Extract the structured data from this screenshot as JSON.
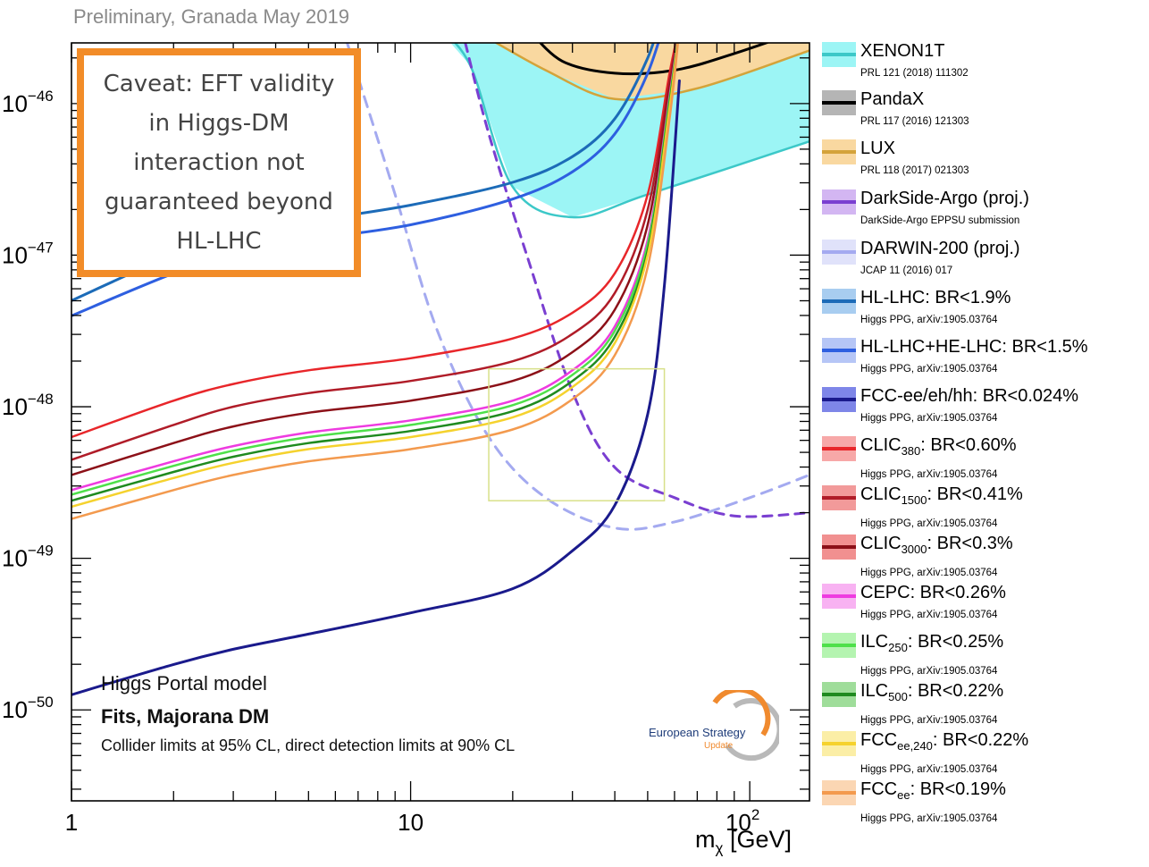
{
  "header": {
    "preliminary": "Preliminary, Granada May 2019"
  },
  "caveat": {
    "lines": [
      "Caveat: EFT validity",
      "in Higgs-DM",
      "interaction not",
      "guaranteed beyond",
      "HL-LHC"
    ]
  },
  "info": {
    "model": "Higgs Portal model",
    "fits": "Fits, Majorana DM",
    "cl_note": "Collider limits at 95% CL, direct detection limits at 90% CL"
  },
  "logo": {
    "line1": "European Strategy",
    "line2": "Update"
  },
  "chart_data": {
    "type": "line",
    "xscale": "log",
    "yscale": "log",
    "xlim": [
      1,
      150
    ],
    "ylim_log10": [
      -50.6,
      -45.6
    ],
    "xlabel_main": "m",
    "xlabel_sub": "χ",
    "xlabel_unit": " [GeV]",
    "x_ticks": [
      {
        "value": 1,
        "base": "1",
        "sup": ""
      },
      {
        "value": 10,
        "base": "10",
        "sup": ""
      },
      {
        "value": 100,
        "base": "10",
        "sup": "2"
      }
    ],
    "y_ticks": [
      {
        "value": -46,
        "base": "10",
        "sup": "−46"
      },
      {
        "value": -47,
        "base": "10",
        "sup": "−47"
      },
      {
        "value": -48,
        "base": "10",
        "sup": "−48"
      },
      {
        "value": -49,
        "base": "10",
        "sup": "−49"
      },
      {
        "value": -50,
        "base": "10",
        "sup": "−50"
      }
    ],
    "bands": [
      {
        "name": "xenon-band",
        "fill": "#9cf5f5",
        "stroke": "#3cc8c8",
        "upper": [
          [
            12,
            -45.5
          ],
          [
            150,
            -45.5
          ]
        ],
        "lower": [
          [
            12,
            -45.5
          ],
          [
            15,
            -45.75
          ],
          [
            20,
            -46.55
          ],
          [
            30,
            -46.75
          ],
          [
            50,
            -46.6
          ],
          [
            150,
            -46.25
          ]
        ]
      },
      {
        "name": "lux-band",
        "fill": "#f9d8a0",
        "stroke": "#d4a33a",
        "upper": [
          [
            15,
            -45.5
          ],
          [
            150,
            -45.5
          ]
        ],
        "lower": [
          [
            15,
            -45.5
          ],
          [
            25,
            -45.78
          ],
          [
            40,
            -45.97
          ],
          [
            70,
            -45.9
          ],
          [
            150,
            -45.65
          ]
        ]
      }
    ],
    "series": [
      {
        "name": "XENON1T",
        "color": "#3cc8c8",
        "width": 2.5,
        "dash": "",
        "points": [
          [
            12,
            -45.5
          ],
          [
            15,
            -45.75
          ],
          [
            20,
            -46.55
          ],
          [
            30,
            -46.75
          ],
          [
            50,
            -46.6
          ],
          [
            150,
            -46.25
          ]
        ]
      },
      {
        "name": "PandaX",
        "color": "#000000",
        "width": 3,
        "dash": "",
        "points": [
          [
            22,
            -45.5
          ],
          [
            28,
            -45.72
          ],
          [
            40,
            -45.8
          ],
          [
            60,
            -45.78
          ],
          [
            90,
            -45.67
          ],
          [
            150,
            -45.5
          ]
        ]
      },
      {
        "name": "LUX",
        "color": "#d4a33a",
        "width": 2.5,
        "dash": "",
        "points": [
          [
            15,
            -45.5
          ],
          [
            25,
            -45.78
          ],
          [
            40,
            -45.97
          ],
          [
            70,
            -45.9
          ],
          [
            150,
            -45.65
          ]
        ]
      },
      {
        "name": "DarkSide-Argo",
        "color": "#7a3fd1",
        "width": 3,
        "dash": "10,8",
        "points": [
          [
            14.5,
            -45.6
          ],
          [
            17,
            -46.2
          ],
          [
            22,
            -47.0
          ],
          [
            30,
            -47.9
          ],
          [
            40,
            -48.4
          ],
          [
            60,
            -48.6
          ],
          [
            90,
            -48.72
          ],
          [
            150,
            -48.7
          ]
        ]
      },
      {
        "name": "DARWIN-200",
        "color": "#a4aaf0",
        "width": 3,
        "dash": "12,9",
        "points": [
          [
            6.5,
            -45.6
          ],
          [
            9,
            -46.6
          ],
          [
            12,
            -47.5
          ],
          [
            17,
            -48.2
          ],
          [
            25,
            -48.6
          ],
          [
            40,
            -48.8
          ],
          [
            60,
            -48.76
          ],
          [
            100,
            -48.6
          ],
          [
            150,
            -48.45
          ]
        ]
      },
      {
        "name": "HL-LHC",
        "color": "#1c6bb8",
        "width": 3,
        "dash": "",
        "points": [
          [
            1,
            -47.3
          ],
          [
            2,
            -47.0
          ],
          [
            3,
            -46.89
          ],
          [
            5,
            -46.78
          ],
          [
            10,
            -46.67
          ],
          [
            20,
            -46.52
          ],
          [
            30,
            -46.35
          ],
          [
            40,
            -46.1
          ],
          [
            50,
            -45.7
          ],
          [
            56,
            -45.35
          ]
        ]
      },
      {
        "name": "HL-LHC+HE-LHC",
        "color": "#2e5fe0",
        "width": 3,
        "dash": "",
        "points": [
          [
            1,
            -47.4
          ],
          [
            2,
            -47.12
          ],
          [
            3,
            -47.0
          ],
          [
            5,
            -46.9
          ],
          [
            10,
            -46.8
          ],
          [
            20,
            -46.63
          ],
          [
            30,
            -46.45
          ],
          [
            40,
            -46.2
          ],
          [
            50,
            -45.8
          ],
          [
            58,
            -45.35
          ]
        ]
      },
      {
        "name": "FCC-ee/eh/hh",
        "color": "#1a1a8c",
        "width": 3,
        "dash": "",
        "points": [
          [
            1,
            -49.9
          ],
          [
            2,
            -49.7
          ],
          [
            3,
            -49.6
          ],
          [
            5,
            -49.5
          ],
          [
            10,
            -49.36
          ],
          [
            20,
            -49.2
          ],
          [
            30,
            -48.95
          ],
          [
            40,
            -48.65
          ],
          [
            50,
            -48.05
          ],
          [
            56,
            -47.2
          ],
          [
            62,
            -45.85
          ]
        ]
      },
      {
        "name": "CLIC380",
        "color": "#e8262a",
        "width": 2.5,
        "dash": "",
        "points": [
          [
            1,
            -48.2
          ],
          [
            2,
            -47.96
          ],
          [
            3,
            -47.85
          ],
          [
            5,
            -47.76
          ],
          [
            10,
            -47.68
          ],
          [
            20,
            -47.55
          ],
          [
            30,
            -47.38
          ],
          [
            40,
            -47.12
          ],
          [
            50,
            -46.6
          ],
          [
            58,
            -45.8
          ],
          [
            62,
            -45.5
          ]
        ]
      },
      {
        "name": "CLIC1500",
        "color": "#b01c28",
        "width": 2.5,
        "dash": "",
        "points": [
          [
            1,
            -48.35
          ],
          [
            2,
            -48.12
          ],
          [
            3,
            -48.0
          ],
          [
            5,
            -47.91
          ],
          [
            10,
            -47.83
          ],
          [
            20,
            -47.7
          ],
          [
            30,
            -47.52
          ],
          [
            40,
            -47.25
          ],
          [
            50,
            -46.7
          ],
          [
            58,
            -45.85
          ],
          [
            62,
            -45.5
          ]
        ]
      },
      {
        "name": "CLIC3000",
        "color": "#8c1018",
        "width": 2.5,
        "dash": "",
        "points": [
          [
            1,
            -48.45
          ],
          [
            2,
            -48.24
          ],
          [
            3,
            -48.13
          ],
          [
            5,
            -48.04
          ],
          [
            10,
            -47.96
          ],
          [
            20,
            -47.83
          ],
          [
            30,
            -47.64
          ],
          [
            40,
            -47.36
          ],
          [
            50,
            -46.8
          ],
          [
            58,
            -45.9
          ],
          [
            62,
            -45.5
          ]
        ]
      },
      {
        "name": "CEPC",
        "color": "#ee3be0",
        "width": 2.5,
        "dash": "",
        "points": [
          [
            1,
            -48.55
          ],
          [
            2,
            -48.36
          ],
          [
            3,
            -48.26
          ],
          [
            5,
            -48.17
          ],
          [
            10,
            -48.09
          ],
          [
            20,
            -47.96
          ],
          [
            30,
            -47.76
          ],
          [
            40,
            -47.47
          ],
          [
            50,
            -46.9
          ],
          [
            58,
            -45.95
          ],
          [
            62,
            -45.5
          ]
        ]
      },
      {
        "name": "ILC250",
        "color": "#4ee04a",
        "width": 2.5,
        "dash": "",
        "points": [
          [
            1,
            -48.58
          ],
          [
            2,
            -48.39
          ],
          [
            3,
            -48.29
          ],
          [
            5,
            -48.2
          ],
          [
            10,
            -48.12
          ],
          [
            20,
            -47.99
          ],
          [
            30,
            -47.79
          ],
          [
            40,
            -47.5
          ],
          [
            50,
            -46.93
          ],
          [
            58,
            -45.97
          ],
          [
            62,
            -45.5
          ]
        ]
      },
      {
        "name": "ILC500",
        "color": "#1f8a1f",
        "width": 2.5,
        "dash": "",
        "points": [
          [
            1,
            -48.62
          ],
          [
            2,
            -48.43
          ],
          [
            3,
            -48.33
          ],
          [
            5,
            -48.24
          ],
          [
            10,
            -48.16
          ],
          [
            20,
            -48.03
          ],
          [
            30,
            -47.83
          ],
          [
            40,
            -47.54
          ],
          [
            50,
            -46.97
          ],
          [
            58,
            -46.0
          ],
          [
            62,
            -45.5
          ]
        ]
      },
      {
        "name": "FCCee240",
        "color": "#f5d22e",
        "width": 2.5,
        "dash": "",
        "points": [
          [
            1,
            -48.66
          ],
          [
            2,
            -48.47
          ],
          [
            3,
            -48.37
          ],
          [
            5,
            -48.28
          ],
          [
            10,
            -48.2
          ],
          [
            20,
            -48.07
          ],
          [
            30,
            -47.87
          ],
          [
            40,
            -47.58
          ],
          [
            50,
            -47.0
          ],
          [
            58,
            -46.03
          ],
          [
            62,
            -45.5
          ]
        ]
      },
      {
        "name": "FCCee",
        "color": "#f39a4e",
        "width": 2.5,
        "dash": "",
        "points": [
          [
            1,
            -48.74
          ],
          [
            2,
            -48.55
          ],
          [
            3,
            -48.45
          ],
          [
            5,
            -48.36
          ],
          [
            10,
            -48.28
          ],
          [
            20,
            -48.15
          ],
          [
            30,
            -47.95
          ],
          [
            40,
            -47.66
          ],
          [
            50,
            -47.08
          ],
          [
            58,
            -46.1
          ],
          [
            62,
            -45.5
          ]
        ]
      }
    ],
    "zoom_box": {
      "x": [
        17,
        56
      ],
      "y_log10": [
        -48.62,
        -47.75
      ],
      "color": "#d8e08a"
    }
  },
  "legend": [
    {
      "label": "XENON1T",
      "sub": "",
      "rest": "",
      "ref": "PRL 121 (2018) 111302",
      "line": "#3cc8c8",
      "fill": "#9cf5f5"
    },
    {
      "label": "PandaX",
      "sub": "",
      "rest": "",
      "ref": "PRL 117 (2016) 121303",
      "line": "#000000",
      "fill": "#b5b5b5"
    },
    {
      "label": "LUX",
      "sub": "",
      "rest": "",
      "ref": "PRL 118 (2017) 021303",
      "line": "#d4a33a",
      "fill": "#f9d8a0"
    },
    {
      "label": "DarkSide-Argo (proj.)",
      "sub": "",
      "rest": "",
      "ref": "DarkSide-Argo EPPSU submission",
      "line": "#7a3fd1",
      "fill": "#d3b6f2"
    },
    {
      "label": "DARWIN-200 (proj.)",
      "sub": "",
      "rest": "",
      "ref": "JCAP 11 (2016) 017",
      "line": "#a4aaf0",
      "fill": "#e0e2fa"
    },
    {
      "label": "HL-LHC: BR<1.9%",
      "sub": "",
      "rest": "",
      "ref": "Higgs PPG, arXiv:1905.03764",
      "line": "#1c6bb8",
      "fill": "#a8cdf0"
    },
    {
      "label": "HL-LHC+HE-LHC: BR<1.5%",
      "sub": "",
      "rest": "",
      "ref": "Higgs PPG, arXiv:1905.03764",
      "line": "#2e5fe0",
      "fill": "#b6c6f6"
    },
    {
      "label": "FCC-ee/eh/hh: BR<0.024%",
      "sub": "",
      "rest": "",
      "ref": "Higgs PPG, arXiv:1905.03764",
      "line": "#1a1a8c",
      "fill": "#7e86e8"
    },
    {
      "label": "CLIC",
      "sub": "380",
      "rest": ": BR<0.60%",
      "ref": "Higgs PPG, arXiv:1905.03764",
      "line": "#e8262a",
      "fill": "#f7a8a8"
    },
    {
      "label": "CLIC",
      "sub": "1500",
      "rest": ": BR<0.41%",
      "ref": "Higgs PPG, arXiv:1905.03764",
      "line": "#b01c28",
      "fill": "#f29a9a"
    },
    {
      "label": "CLIC",
      "sub": "3000",
      "rest": ": BR<0.3%",
      "ref": "Higgs PPG, arXiv:1905.03764",
      "line": "#8c1018",
      "fill": "#f19090"
    },
    {
      "label": "CEPC: BR<0.26%",
      "sub": "",
      "rest": "",
      "ref": "Higgs PPG, arXiv:1905.03764",
      "line": "#ee3be0",
      "fill": "#f8b2f2"
    },
    {
      "label": "ILC",
      "sub": "250",
      "rest": ": BR<0.25%",
      "ref": "Higgs PPG, arXiv:1905.03764",
      "line": "#4ee04a",
      "fill": "#b4f4b0"
    },
    {
      "label": "ILC",
      "sub": "500",
      "rest": ": BR<0.22%",
      "ref": "Higgs PPG, arXiv:1905.03764",
      "line": "#1f8a1f",
      "fill": "#9fdd9a"
    },
    {
      "label": "FCC",
      "sub": "ee,240",
      "rest": ": BR<0.22%",
      "ref": "Higgs PPG, arXiv:1905.03764",
      "line": "#f5d22e",
      "fill": "#fbeea6"
    },
    {
      "label": "FCC",
      "sub": "ee",
      "rest": ": BR<0.19%",
      "ref": "Higgs PPG, arXiv:1905.03764",
      "line": "#f39a4e",
      "fill": "#fbd6b3"
    }
  ]
}
